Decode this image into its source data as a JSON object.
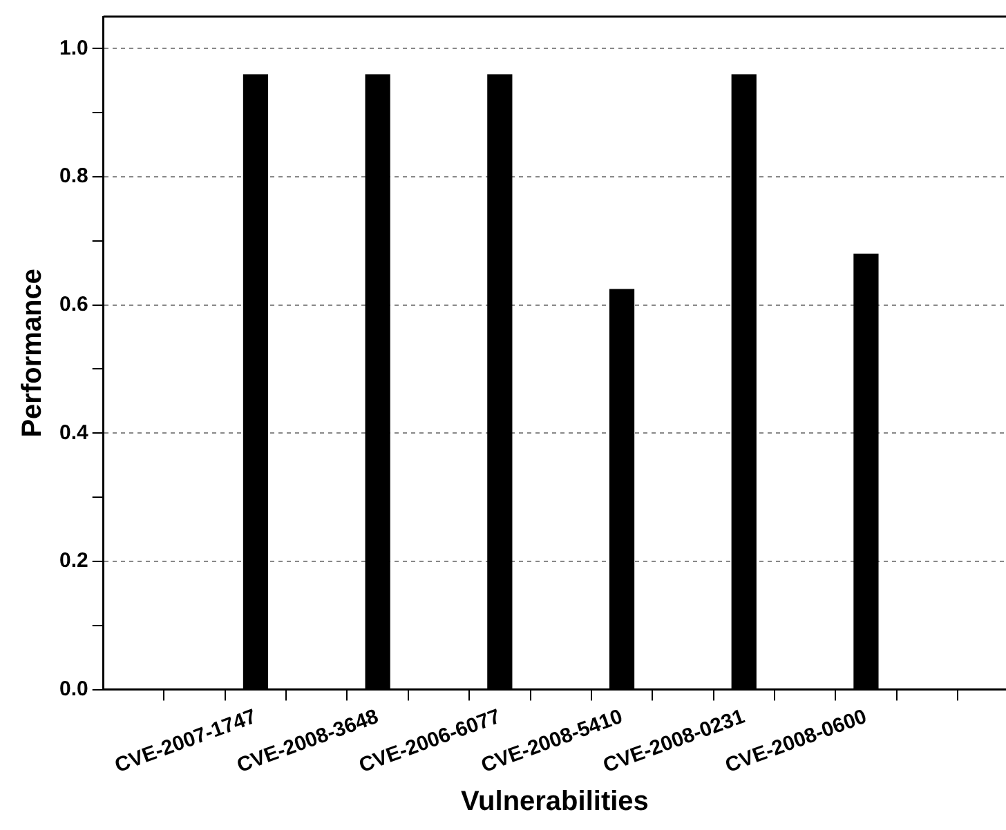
{
  "chart_data": {
    "type": "bar",
    "xlabel": "Vulnerabilities",
    "ylabel": "Performance",
    "categories": [
      "CVE-2007-1747",
      "CVE-2008-3648",
      "CVE-2006-6077",
      "CVE-2008-5410",
      "CVE-2008-0231",
      "CVE-2008-0600"
    ],
    "values": [
      0.96,
      0.96,
      0.96,
      0.625,
      0.96,
      0.68
    ],
    "color": "#000000",
    "ylim": [
      0,
      1.05
    ],
    "yticks": [
      {
        "value": 0,
        "label": "0.0"
      },
      {
        "value": 0.1,
        "label": null
      },
      {
        "value": 0.2,
        "label": "0.2"
      },
      {
        "value": 0.3,
        "label": null
      },
      {
        "value": 0.4,
        "label": "0.4"
      },
      {
        "value": 0.5,
        "label": null
      },
      {
        "value": 0.6,
        "label": "0.6"
      },
      {
        "value": 0.7,
        "label": null
      },
      {
        "value": 0.8,
        "label": "0.8"
      },
      {
        "value": 0.9,
        "label": null
      },
      {
        "value": 1,
        "label": "1.0"
      }
    ],
    "grid": "y",
    "legend": false
  }
}
